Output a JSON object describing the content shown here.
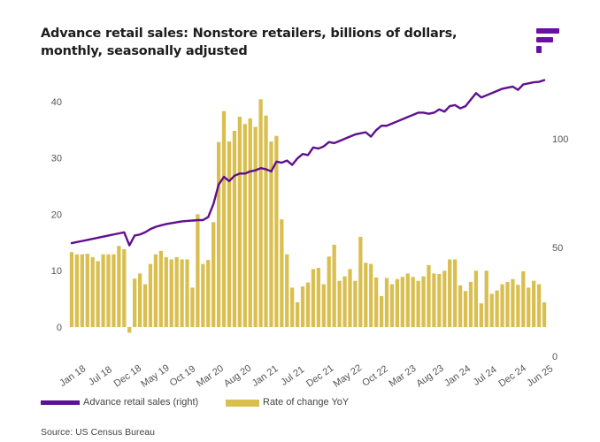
{
  "header": {
    "title": "Advance retail sales: Nonstore retailers, billions of dollars, monthly, seasonally adjusted"
  },
  "logo": {
    "icon": "brand-f-logo-icon",
    "color": "#6a0fa3"
  },
  "legend": {
    "line_label": "Advance retail sales (right)",
    "bar_label": "Rate of change YoY"
  },
  "source": "Source: US Census Bureau",
  "colors": {
    "line": "#5f0f8f",
    "bar": "#d9bf4f",
    "axis_text": "#555555"
  },
  "chart_data": {
    "type": "bar+line",
    "grid": false,
    "legend_position": "bottom",
    "x_tick_labels": [
      "Jan 18",
      "Jul 18",
      "Dec 18",
      "May 19",
      "Oct 19",
      "Mar 20",
      "Aug 20",
      "Jan 21",
      "Jul 21",
      "Dec 21",
      "May 22",
      "Oct 22",
      "Mar 23",
      "Aug 23",
      "Jan 24",
      "Jul 24",
      "Dec 24",
      "Jun 25"
    ],
    "left_axis": {
      "ylim": [
        0,
        45
      ],
      "ticks": [
        0,
        10,
        20,
        30,
        40
      ]
    },
    "right_axis": {
      "ylim": [
        0,
        130
      ],
      "ticks": [
        0,
        50,
        100
      ]
    },
    "months_start": "Jan 18",
    "series": [
      {
        "name": "Rate of change YoY",
        "kind": "bar",
        "axis": "left",
        "values": [
          13.3,
          12.9,
          12.9,
          13.0,
          12.4,
          11.7,
          12.9,
          12.9,
          12.9,
          14.4,
          13.8,
          -1.0,
          8.6,
          9.5,
          7.6,
          11.2,
          12.9,
          13.5,
          12.4,
          12.0,
          12.4,
          12.0,
          12.0,
          7.0,
          20.0,
          11.2,
          11.9,
          18.6,
          32.8,
          38.3,
          32.9,
          34.8,
          37.3,
          36.0,
          37.0,
          35.5,
          40.4,
          37.5,
          32.9,
          33.9,
          19.1,
          12.9,
          7.0,
          4.4,
          7.2,
          7.9,
          10.3,
          10.5,
          7.6,
          12.5,
          14.6,
          8.2,
          9.0,
          10.3,
          8.2,
          16.0,
          11.4,
          11.2,
          8.8,
          5.5,
          8.7,
          7.6,
          8.5,
          8.9,
          9.5,
          8.9,
          8.2,
          9.0,
          11.0,
          9.5,
          9.4,
          10.0,
          12.0,
          12.0,
          7.4,
          6.4,
          8.0,
          10.0,
          4.2,
          10.0,
          5.9,
          6.5,
          7.6,
          8.0,
          8.5,
          7.5,
          9.9,
          7.0,
          8.2,
          7.6,
          4.4
        ]
      },
      {
        "name": "Advance retail sales (right)",
        "kind": "line",
        "axis": "right",
        "values": [
          52,
          52.5,
          53,
          53.5,
          54,
          54.5,
          55,
          55.5,
          56,
          56.5,
          57,
          51,
          55.5,
          56,
          57,
          58.5,
          59.5,
          60.2,
          60.8,
          61.2,
          61.6,
          62,
          62.2,
          62.4,
          62.6,
          62.6,
          64,
          70,
          79,
          82.5,
          80.5,
          83,
          84,
          84,
          85,
          85.5,
          86.5,
          86,
          85,
          89.5,
          89,
          90,
          88,
          91,
          93,
          92.5,
          96,
          95.5,
          96.5,
          98.5,
          98,
          99,
          100,
          101,
          102,
          102.5,
          103,
          101,
          104,
          106,
          106,
          107,
          108,
          109,
          110,
          111,
          112,
          112,
          111.5,
          112,
          113.5,
          112.5,
          115,
          115.5,
          114,
          115,
          118,
          121,
          119,
          120,
          121,
          122,
          123,
          123.5,
          124,
          122.5,
          125,
          125.5,
          126,
          126.2,
          127
        ]
      }
    ]
  }
}
